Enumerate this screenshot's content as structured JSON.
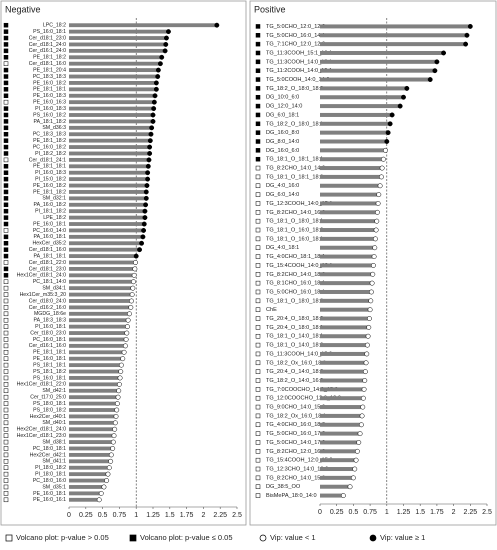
{
  "chart_data": [
    {
      "type": "lollipop",
      "title": "Negative",
      "categories": [
        "LPC_18:2",
        "PS_16:0_18:1",
        "Cer_d18:1_23:0",
        "Cer_d18:1_24:0",
        "Cer_d16:1_24:0",
        "PE_18:1_18:2",
        "Cer_d18:1_16:0",
        "PE_18:1_20:4",
        "PC_18:3_18:3",
        "PE_16:0_18:2",
        "PE_18:1_18:1",
        "PE_16:0_18:3",
        "PE_16:0_16:3",
        "PI_16:0_18:3",
        "PS_16:0_18:2",
        "PA_18:1_18:2",
        "SM_d36:3",
        "PC_18:3_18:3",
        "PE_18:1_18:2",
        "PC_16:0_18:2",
        "PI_18:2_18:2",
        "Cer_d18:1_24:1",
        "PE_18:1_18:1",
        "PI_16:0_18:3",
        "PI_15:0_18:2",
        "PE_16:0_18:2",
        "PE_18:1_18:2",
        "SM_d32:1",
        "PA_16:0_18:2",
        "PI_18:1_18:2",
        "LPE_18:2",
        "PE_16:0_18:1",
        "PC_16:0_14:0",
        "PA_16:0_18:1",
        "HexCer_d35:2",
        "Cer_d18:1_16:0",
        "PA_18:1_18:1",
        "Cer_d18:1_22:0",
        "Cer_d18:1_23:0",
        "Hex1Cer_d18:1_24:0",
        "PC_18:1_14:0",
        "SM_d34:1",
        "Hex1Cer_m35:3_20",
        "Cer_d18:0_24:0",
        "Cer_d16:2_16:0",
        "MGDG_18:6e",
        "PA_18:3_18:3",
        "PI_16:0_18:1",
        "Cer_t18:0_23:0",
        "PC_16:0_18:1",
        "Cer_d16:1_16:0",
        "PE_18:1_18:1",
        "PE_16:0_18:1",
        "PS_18:1_18:1",
        "PS_18:1_18:2",
        "PS_16:0_18:1",
        "Hex1Cer_d18:1_22:0",
        "SM_d42:1",
        "Cer_t17:0_25:0",
        "PS_18:0_18:1",
        "PS_18:0_18:2",
        "Hex2Cer_d40:1",
        "SM_d40:1",
        "Hex2Cer_d18:1_24:0",
        "Hex1Cer_d18:1_23:0",
        "SM_d38:1",
        "PC_18:0_18:1",
        "Hex2Cer_d42:1",
        "SM_d41:1",
        "PI_18:0_18:2",
        "PI_18:0_18:1",
        "PC_18:0_16:0",
        "SM_d35:1",
        "PE_16:0_18:1",
        "PE_16:0_16:1"
      ],
      "values": [
        2.2,
        1.48,
        1.45,
        1.44,
        1.43,
        1.38,
        1.36,
        1.33,
        1.32,
        1.3,
        1.3,
        1.28,
        1.27,
        1.26,
        1.25,
        1.25,
        1.23,
        1.22,
        1.21,
        1.2,
        1.2,
        1.19,
        1.18,
        1.17,
        1.17,
        1.16,
        1.15,
        1.15,
        1.14,
        1.13,
        1.13,
        1.12,
        1.11,
        1.1,
        1.08,
        1.05,
        1.0,
        0.99,
        0.98,
        0.97,
        0.96,
        0.95,
        0.94,
        0.93,
        0.92,
        0.9,
        0.88,
        0.87,
        0.86,
        0.85,
        0.84,
        0.82,
        0.8,
        0.78,
        0.77,
        0.76,
        0.75,
        0.74,
        0.73,
        0.72,
        0.71,
        0.7,
        0.69,
        0.68,
        0.67,
        0.66,
        0.65,
        0.63,
        0.62,
        0.6,
        0.58,
        0.56,
        0.52,
        0.48,
        0.45
      ],
      "volcano_significant": [
        true,
        true,
        true,
        true,
        true,
        true,
        false,
        true,
        true,
        true,
        true,
        true,
        false,
        true,
        true,
        true,
        true,
        true,
        true,
        true,
        true,
        false,
        true,
        true,
        true,
        true,
        true,
        true,
        true,
        true,
        true,
        true,
        false,
        true,
        true,
        true,
        true,
        false,
        true,
        true,
        false,
        false,
        false,
        false,
        false,
        false,
        false,
        false,
        false,
        false,
        false,
        false,
        false,
        false,
        false,
        false,
        false,
        false,
        false,
        false,
        false,
        false,
        false,
        false,
        false,
        false,
        false,
        false,
        false,
        false,
        false,
        false,
        false,
        false,
        false
      ],
      "xlim": [
        0,
        2.5
      ],
      "xticks": [
        0,
        0.25,
        0.5,
        0.75,
        1,
        1.25,
        1.5,
        1.75,
        2,
        2.25,
        2.5
      ],
      "vip_threshold": 1,
      "color": "#808080"
    },
    {
      "type": "lollipop",
      "title": "Positive",
      "categories": [
        "TG_5:0CHO_12:0_12:0",
        "TG_5:0CHO_16:0_14:1",
        "TG_7:1CHO_12:0_12:0",
        "TG_11:3COOH_15:1_18:1",
        "TG_11:3COOH_14:0_15:1",
        "TG_11:2COOH_14:0_15:1",
        "TG_5:0COOH_14:0_14:0",
        "TG_18:2_O_18:0_18:0",
        "DG_10:0_6:0",
        "DG_12:0_14:0",
        "DG_6:0_18:1",
        "TG_18:2_O_18:0_18:1",
        "DG_16:0_8:0",
        "DG_8:0_14:0",
        "DG_16:0_6:0",
        "TG_18:1_O_18:1_18:1",
        "TG_8:2CHO_14:0_14:0",
        "TG_18:1_O_18:1_18:0",
        "DG_4:0_16:0",
        "DG_6:0_14:0",
        "TG_12:3COOH_14:0_15:1",
        "TG_8:2CHO_14:0_16:0",
        "TG_18:1_O_18:0_18:1",
        "TG_18:1_O_16:0_18:0",
        "TG_18:1_O_16:0_18:1",
        "DG_4:0_18:1",
        "TG_4:0CHO_18:1_18:1",
        "TG_15:4COOH_14:0_18:1",
        "TG_8:2CHO_14:0_18:0",
        "TG_8:1CHO_16:0_18:1",
        "TG_5:0CHO_16:0_18:1",
        "TG_18:1_O_18:0_18:0",
        "ChE",
        "TG_20:4_O_18:0_18:0",
        "TG_20:4_O_18:0_18:1",
        "TG_18:1_O_14:0_18:1",
        "TG_18:1_O_14:0_18:0",
        "TG_11:3COOH_14:0_15:0",
        "TG_18:2_Ox_16:0_18:0",
        "TG_20:4_O_14:0_18:0",
        "TG_18:2_O_14:0_16:0",
        "TG_7:0COOCHO_14:0_15:0",
        "TG_12:0COOCHO_12:0_12:0",
        "TG_9:0CHO_14:0_15:0",
        "TG_18:2_Ox_16:0_18:1",
        "TG_4:0CHO_16:0_18:0",
        "TG_5:0CHO_16:0_17:0",
        "TG_5:0CHO_14:0_17:0",
        "TG_8:2CHO_12:0_16:0",
        "TG_15:4COOH_12:0_15:0",
        "TG_12:3CHO_14:0_16:0",
        "TG_8:2CHO_14:0_15:0",
        "DG_38:5_OO",
        "BisMePA_18:0_14:0"
      ],
      "values": [
        2.25,
        2.2,
        2.18,
        1.85,
        1.75,
        1.72,
        1.65,
        1.3,
        1.25,
        1.2,
        1.08,
        1.05,
        1.02,
        1.0,
        0.98,
        0.95,
        0.93,
        0.92,
        0.9,
        0.88,
        0.87,
        0.86,
        0.85,
        0.84,
        0.83,
        0.82,
        0.81,
        0.8,
        0.79,
        0.78,
        0.77,
        0.76,
        0.75,
        0.74,
        0.73,
        0.72,
        0.71,
        0.7,
        0.69,
        0.68,
        0.67,
        0.66,
        0.65,
        0.64,
        0.63,
        0.62,
        0.6,
        0.58,
        0.56,
        0.54,
        0.52,
        0.5,
        0.45,
        0.35
      ],
      "volcano_significant": [
        true,
        true,
        true,
        true,
        true,
        true,
        true,
        true,
        true,
        true,
        true,
        true,
        true,
        true,
        true,
        true,
        false,
        false,
        false,
        false,
        false,
        false,
        false,
        false,
        false,
        false,
        false,
        false,
        false,
        false,
        false,
        false,
        false,
        false,
        false,
        false,
        false,
        false,
        false,
        false,
        false,
        false,
        false,
        false,
        false,
        false,
        false,
        false,
        false,
        false,
        false,
        false,
        false,
        false
      ],
      "xlim": [
        0,
        2.5
      ],
      "xticks": [
        0,
        0.25,
        0.5,
        0.75,
        1,
        1.25,
        1.5,
        1.75,
        2,
        2.25,
        2.5
      ],
      "vip_threshold": 1,
      "color": "#808080"
    }
  ],
  "legend": [
    "Volcano plot: p-value > 0.05",
    "Volcano plot: p-value ≤ 0.05",
    "Vip: value < 1",
    "Vip: value ≥ 1"
  ]
}
